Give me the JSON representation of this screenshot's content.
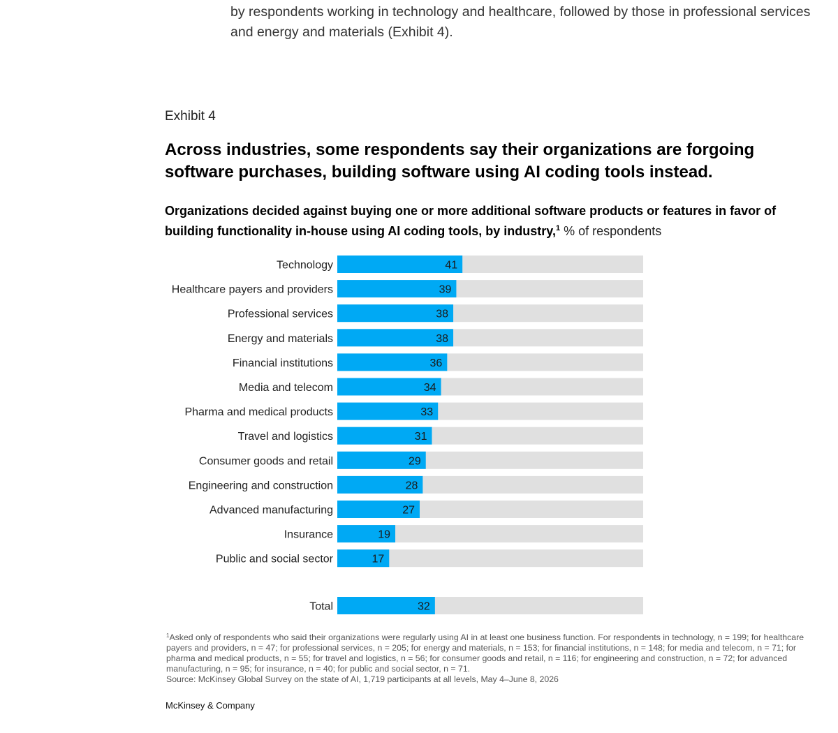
{
  "intro": {
    "line1": "by respondents working in technology and healthcare, followed by those in professional services",
    "line2": "and energy and materials (Exhibit 4)."
  },
  "exhibit": {
    "label": "Exhibit 4",
    "title_line1": "Across industries, some respondents say their organizations are forgoing",
    "title_line2": "software purchases, building software using AI coding tools instead.",
    "subtitle_bold": "Organizations decided against buying one or more additional software products or features in favor of building functionality in-house using AI coding tools, by industry,",
    "subtitle_sup": "1",
    "subtitle_unit": "% of respondents"
  },
  "chart_data": {
    "type": "bar",
    "orientation": "horizontal",
    "categories": [
      "Technology",
      "Healthcare payers and providers",
      "Professional services",
      "Energy and materials",
      "Financial institutions",
      "Media and telecom",
      "Pharma and medical products",
      "Travel and logistics",
      "Consumer goods and retail",
      "Engineering and construction",
      "Advanced manufacturing",
      "Insurance",
      "Public and social sector"
    ],
    "values": [
      41,
      39,
      38,
      38,
      36,
      34,
      33,
      31,
      29,
      28,
      27,
      19,
      17
    ],
    "total_label": "Total",
    "total_value": 32,
    "xlim": [
      0,
      100
    ],
    "colors": {
      "bar": "#00a9f4",
      "track": "#e0e0e0",
      "label": "#222222"
    }
  },
  "footnote": {
    "sup": "1",
    "text": "Asked only of respondents who said their organizations were regularly using AI in at least one business function. For respondents in technology, n = 199; for healthcare payers and providers, n = 47; for professional services, n = 205; for energy and materials, n = 153; for financial institutions, n = 148; for media and telecom, n = 71; for pharma and medical products, n = 55; for travel and logistics, n = 56; for consumer goods and retail, n = 116; for engineering and construction, n = 72; for advanced manufacturing, n = 95; for insurance, n = 40; for public and social sector, n = 71.",
    "source": "Source: McKinsey Global Survey on the state of AI, 1,719 participants at all levels, May 4–June 8, 2026"
  },
  "brand": "McKinsey & Company"
}
